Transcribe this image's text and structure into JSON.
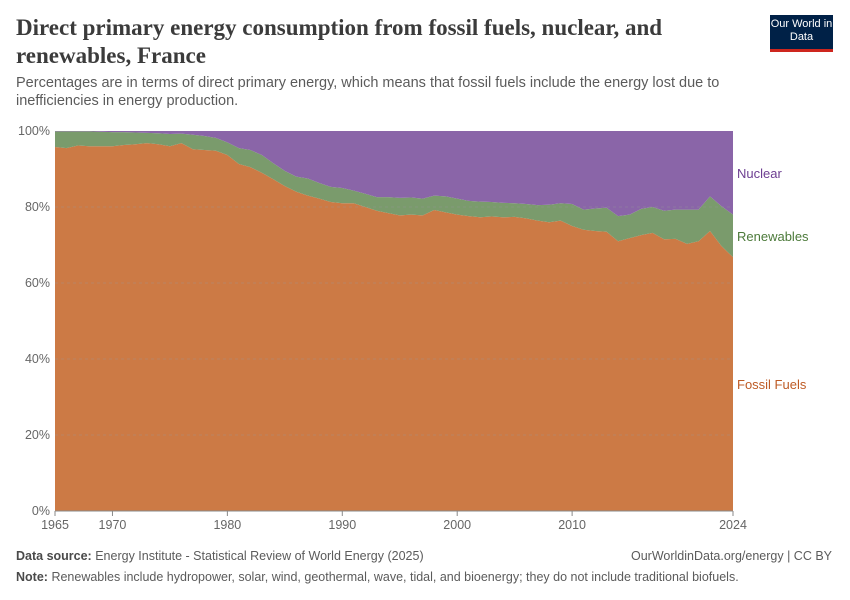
{
  "header": {
    "title": "Direct primary energy consumption from fossil fuels, nuclear, and renewables, France",
    "subtitle": "Percentages are in terms of direct primary energy, which means that fossil fuels include the energy lost due to inefficiencies in energy production.",
    "logo": "Our World in Data"
  },
  "footer": {
    "source_label": "Data source:",
    "source": "Energy Institute - Statistical Review of World Energy (2025)",
    "url": "OurWorldinData.org/energy | CC BY",
    "note_label": "Note:",
    "note": "Renewables include hydropower, solar, wind, geothermal, wave, tidal, and bioenergy; they do not include traditional biofuels."
  },
  "chart_data": {
    "type": "area",
    "stacked": true,
    "grid": true,
    "legend": "right",
    "xlim": [
      1965,
      2024
    ],
    "ylim": [
      0,
      100
    ],
    "x_ticks": [
      "1965",
      "1970",
      "1980",
      "1990",
      "2000",
      "2010",
      "2024"
    ],
    "y_ticks": [
      "0%",
      "20%",
      "40%",
      "60%",
      "80%",
      "100%"
    ],
    "x": [
      1965,
      1966,
      1967,
      1968,
      1969,
      1970,
      1971,
      1972,
      1973,
      1974,
      1975,
      1976,
      1977,
      1978,
      1979,
      1980,
      1981,
      1982,
      1983,
      1984,
      1985,
      1986,
      1987,
      1988,
      1989,
      1990,
      1991,
      1992,
      1993,
      1994,
      1995,
      1996,
      1997,
      1998,
      1999,
      2000,
      2001,
      2002,
      2003,
      2004,
      2005,
      2006,
      2007,
      2008,
      2009,
      2010,
      2011,
      2012,
      2013,
      2014,
      2015,
      2016,
      2017,
      2018,
      2019,
      2020,
      2021,
      2022,
      2023,
      2024
    ],
    "series": [
      {
        "name": "Fossil Fuels",
        "color": "#cc7a45",
        "label_color": "#be5b25",
        "values": [
          95.8,
          95.5,
          96.2,
          96.0,
          96.0,
          96.0,
          96.3,
          96.5,
          96.8,
          96.5,
          96.0,
          96.8,
          95.2,
          95.0,
          94.8,
          93.7,
          91.3,
          90.5,
          89.0,
          87.3,
          85.5,
          84.0,
          83.0,
          82.2,
          81.3,
          81.0,
          81.0,
          80.0,
          79.0,
          78.4,
          77.8,
          78.0,
          77.8,
          79.2,
          78.6,
          78.0,
          77.6,
          77.3,
          77.5,
          77.3,
          77.4,
          77.0,
          76.4,
          76.0,
          76.4,
          75.0,
          74.0,
          73.7,
          73.5,
          71.0,
          71.8,
          72.6,
          73.2,
          71.5,
          71.6,
          70.3,
          71.0,
          73.7,
          69.7,
          66.8
        ]
      },
      {
        "name": "Renewables",
        "color": "#7a9b6c",
        "label_color": "#4c7a3a",
        "values": [
          4.1,
          4.4,
          3.7,
          3.9,
          3.8,
          3.7,
          3.4,
          3.1,
          2.7,
          2.9,
          3.2,
          2.5,
          3.8,
          3.7,
          3.4,
          3.3,
          4.2,
          4.5,
          4.7,
          4.2,
          4.0,
          4.0,
          4.5,
          4.1,
          4.0,
          4.0,
          3.3,
          3.5,
          3.6,
          4.2,
          4.6,
          4.5,
          4.4,
          3.8,
          4.2,
          4.2,
          4.0,
          4.1,
          3.8,
          3.8,
          3.6,
          3.8,
          4.1,
          4.6,
          4.6,
          5.8,
          5.3,
          5.9,
          6.3,
          6.6,
          6.2,
          6.9,
          6.8,
          7.5,
          7.7,
          9.0,
          8.3,
          9.1,
          10.5,
          11.2
        ]
      },
      {
        "name": "Nuclear",
        "color": "#8a65a8",
        "label_color": "#6d3e91",
        "values": [
          0.1,
          0.1,
          0.1,
          0.1,
          0.2,
          0.3,
          0.3,
          0.4,
          0.5,
          0.6,
          0.8,
          0.7,
          1.0,
          1.3,
          1.8,
          3.0,
          4.5,
          5.0,
          6.3,
          8.5,
          10.5,
          12.0,
          12.5,
          13.7,
          14.7,
          15.0,
          15.7,
          16.5,
          17.4,
          17.4,
          17.6,
          17.5,
          17.8,
          17.0,
          17.2,
          17.8,
          18.4,
          18.6,
          18.7,
          18.9,
          19.0,
          19.2,
          19.5,
          19.4,
          19.0,
          19.2,
          20.7,
          20.4,
          20.2,
          22.4,
          22.0,
          20.5,
          20.0,
          21.0,
          20.7,
          20.7,
          20.7,
          17.2,
          19.8,
          22.0
        ]
      }
    ]
  }
}
